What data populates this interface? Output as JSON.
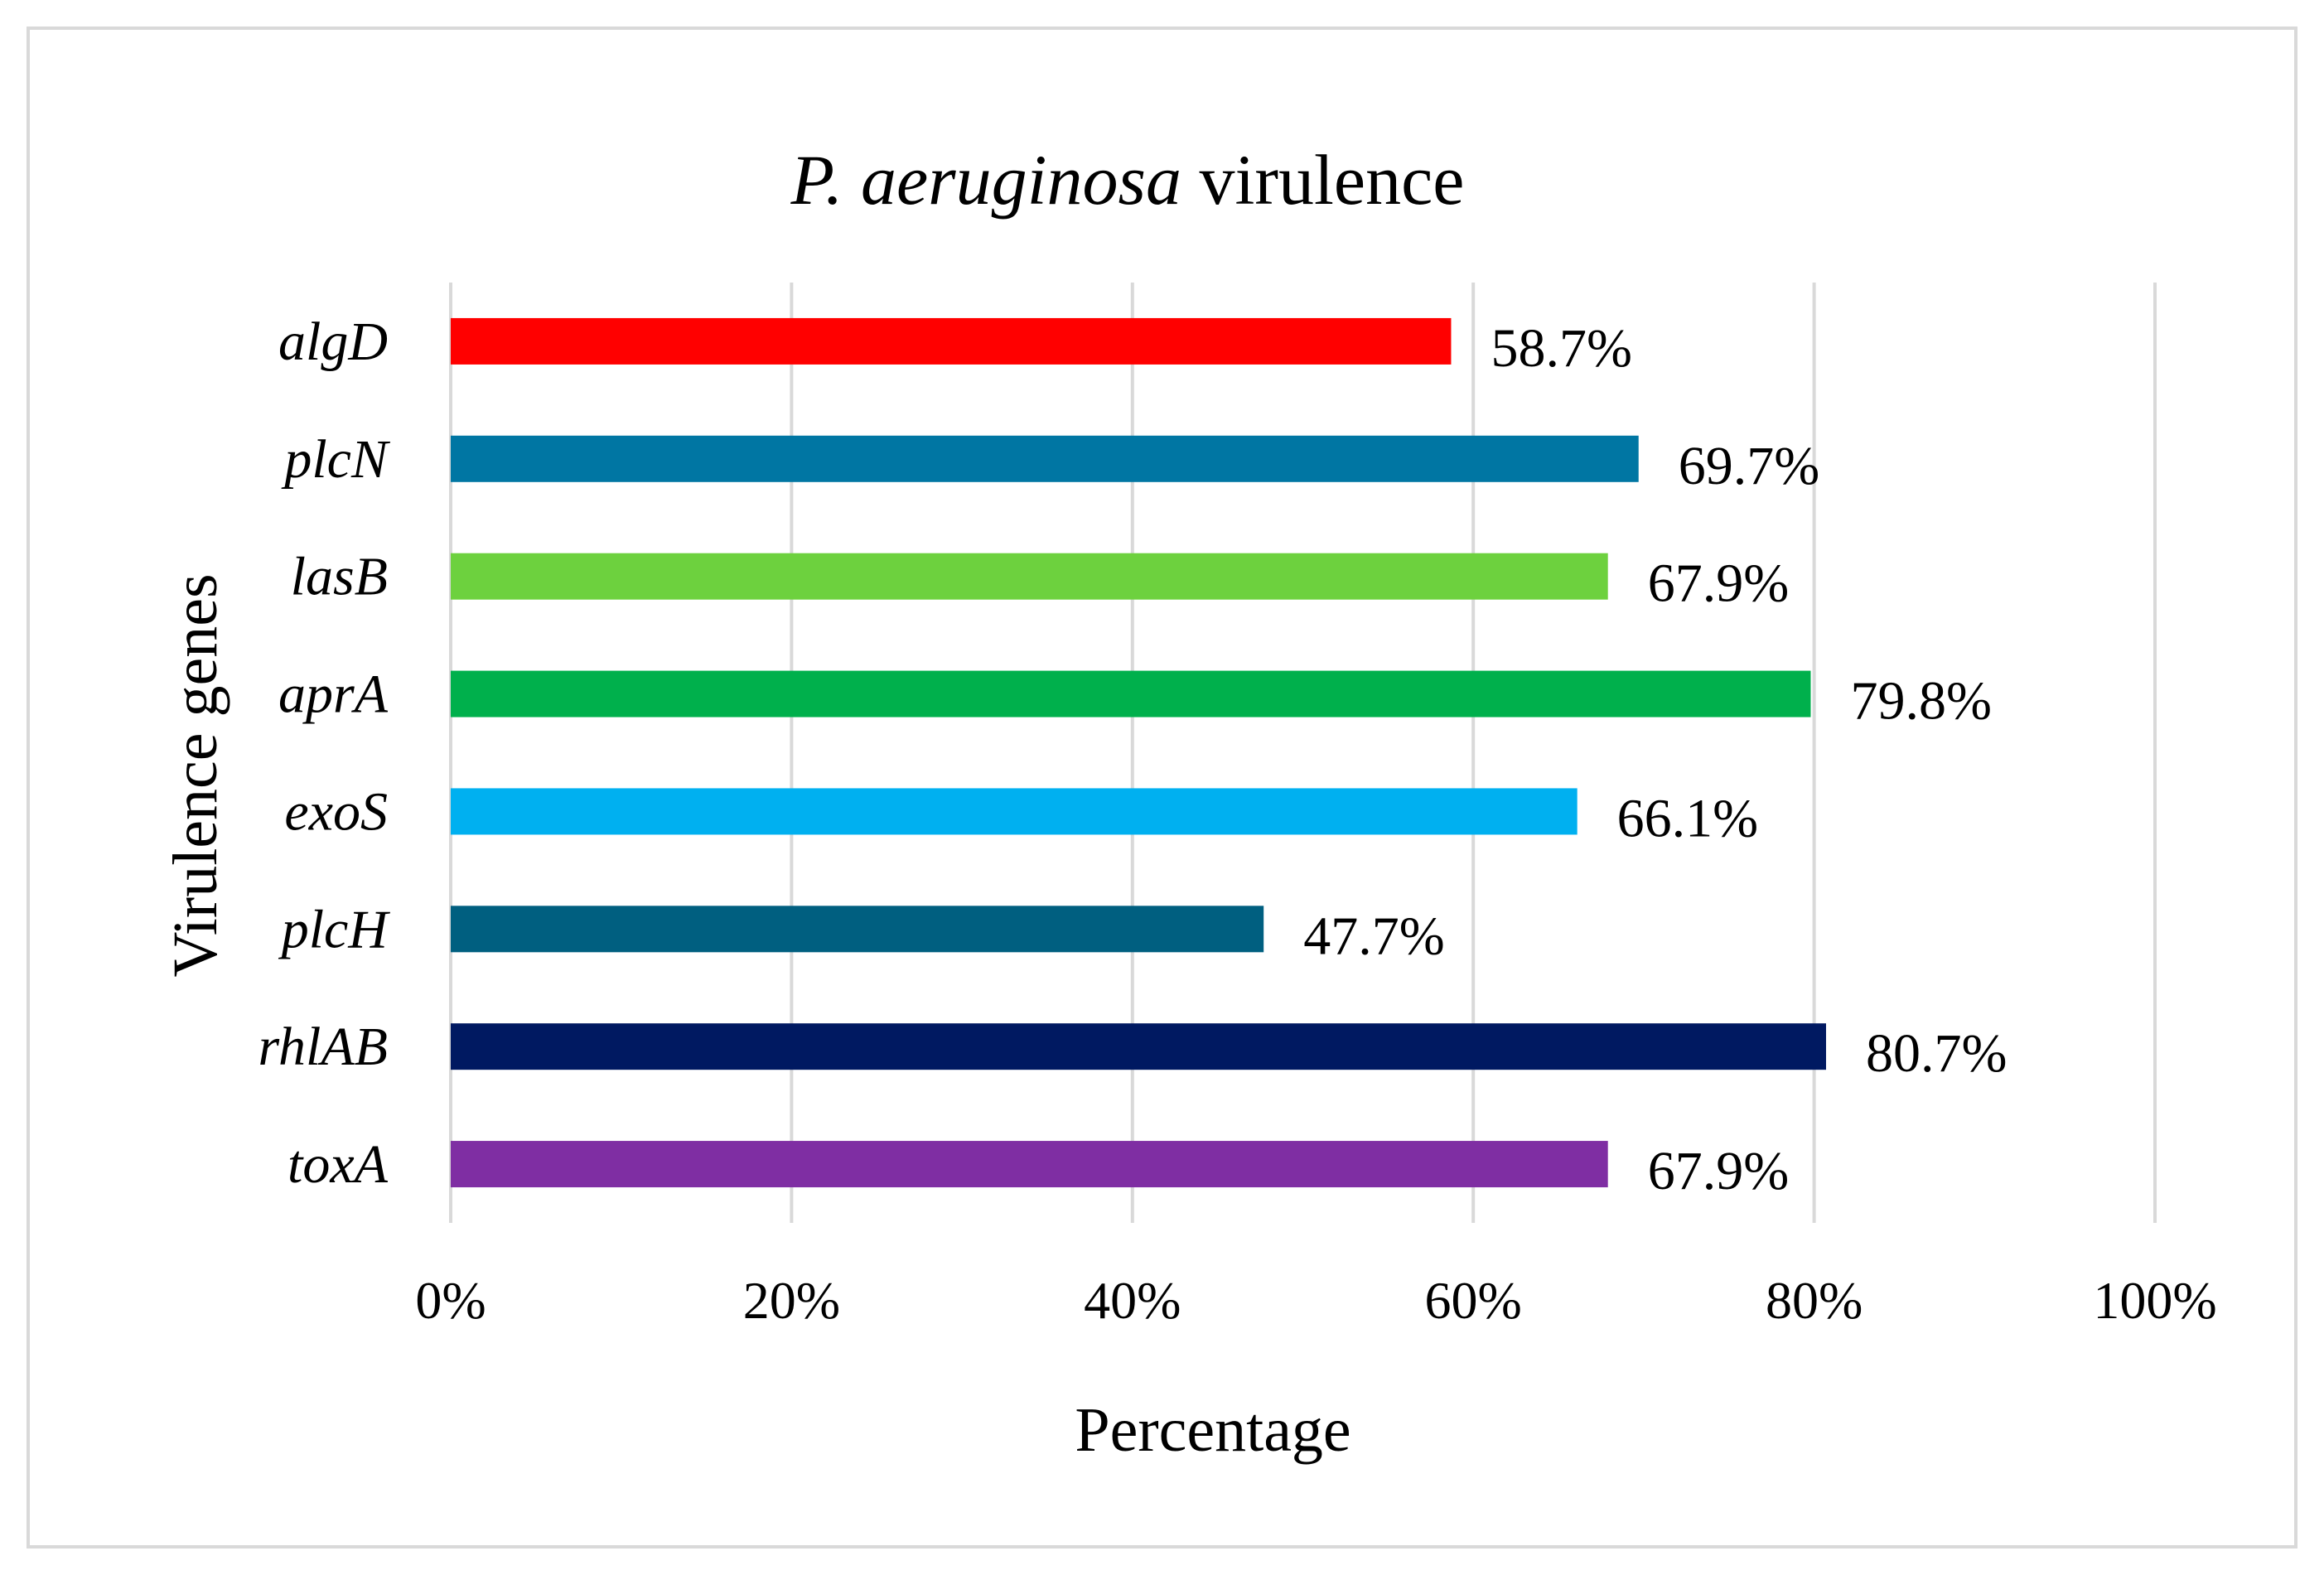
{
  "chart_data": {
    "type": "bar",
    "orientation": "horizontal",
    "title_italic": "P. aeruginosa",
    "title_rest": " virulence",
    "xlabel": "Percentage",
    "ylabel": "Virulence genes",
    "xlim": [
      0,
      100
    ],
    "xticks": [
      0,
      20,
      40,
      60,
      80,
      100
    ],
    "xtick_labels": [
      "0%",
      "20%",
      "40%",
      "60%",
      "80%",
      "100%"
    ],
    "grid": true,
    "categories": [
      "algD",
      "plcN",
      "lasB",
      "aprA",
      "exoS",
      "plcH",
      "rhlAB",
      "toxA"
    ],
    "values": [
      58.7,
      69.7,
      67.9,
      79.8,
      66.1,
      47.7,
      80.7,
      67.9
    ],
    "data_labels": [
      "58.7%",
      "69.7%",
      "67.9%",
      "79.8%",
      "66.1%",
      "47.7%",
      "80.7%",
      "67.9%"
    ],
    "colors": [
      "#ff0000",
      "#0076a3",
      "#6dd13e",
      "#00b04c",
      "#00b0f0",
      "#005f80",
      "#001961",
      "#7f2ea3"
    ]
  }
}
